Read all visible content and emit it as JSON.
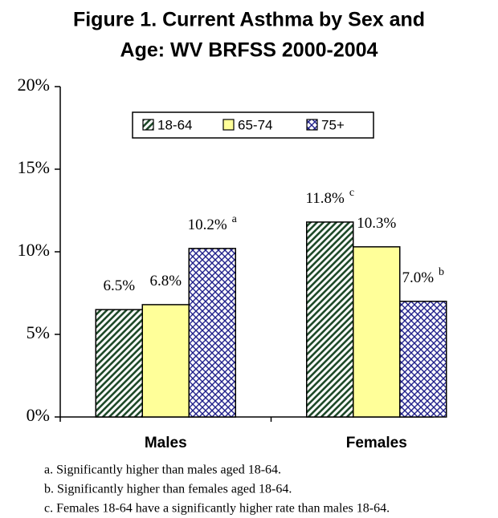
{
  "chart_data": {
    "type": "bar",
    "title": [
      "Figure 1.  Current Asthma by Sex and",
      "Age: WV BRFSS 2000-2004"
    ],
    "categories": [
      "Males",
      "Females"
    ],
    "series": [
      {
        "name": "18-64",
        "color": "#1f4a2a",
        "fill_style": "diagonal",
        "values": [
          6.5,
          11.8
        ],
        "value_labels": [
          "6.5%",
          "11.8%"
        ],
        "value_notes": [
          null,
          "c"
        ]
      },
      {
        "name": "65-74",
        "color": "#ffff99",
        "fill_style": "solid",
        "values": [
          6.8,
          10.3
        ],
        "value_labels": [
          "6.8%",
          "10.3%"
        ],
        "value_notes": [
          null,
          null
        ]
      },
      {
        "name": "75+",
        "color": "#20208a",
        "fill_style": "crosshatch",
        "values": [
          10.2,
          7.0
        ],
        "value_labels": [
          "10.2%",
          "7.0%"
        ],
        "value_notes": [
          "a",
          "b"
        ]
      }
    ],
    "ylim": [
      0,
      20
    ],
    "yticks": [
      {
        "value": 0,
        "label": "0%"
      },
      {
        "value": 5,
        "label": "5%"
      },
      {
        "value": 10,
        "label": "10%"
      },
      {
        "value": 15,
        "label": "15%"
      },
      {
        "value": 20,
        "label": "20%"
      }
    ],
    "legend": "top",
    "footnotes": [
      "a. Significantly higher than males aged 18-64.",
      "b. Significantly higher than females aged 18-64.",
      "c. Females 18-64 have a significantly higher rate than males 18-64."
    ]
  }
}
